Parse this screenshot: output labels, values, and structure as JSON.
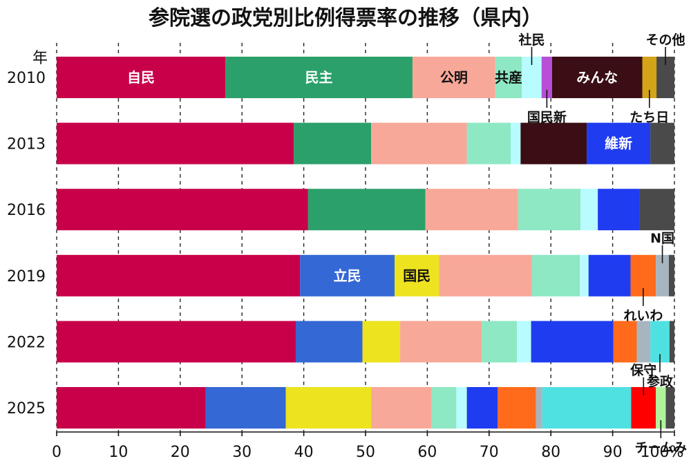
{
  "chart_data": {
    "type": "bar",
    "orientation": "horizontal",
    "stacked": true,
    "title": "参院選の政党別比例得票率の推移（県内）",
    "y_axis_header": "年",
    "x_unit_suffix": "%",
    "xlim": [
      0,
      100
    ],
    "x_ticks": [
      0,
      10,
      20,
      30,
      40,
      50,
      60,
      70,
      80,
      90,
      100
    ],
    "grid": "vertical dashed",
    "categories": [
      "2010",
      "2013",
      "2016",
      "2019",
      "2022",
      "2025"
    ],
    "parties": [
      {
        "name": "自民",
        "color": "#C8004A"
      },
      {
        "name": "民主",
        "color": "#2BA06A"
      },
      {
        "name": "立民",
        "color": "#3468D4"
      },
      {
        "name": "国民",
        "color": "#EDE31F"
      },
      {
        "name": "公明",
        "color": "#F8A898"
      },
      {
        "name": "共産",
        "color": "#8EE8C4"
      },
      {
        "name": "社民",
        "color": "#B8FCFF"
      },
      {
        "name": "国民新",
        "color": "#B84FD6"
      },
      {
        "name": "みんな",
        "color": "#3A0E14"
      },
      {
        "name": "維新",
        "color": "#1F3CF0"
      },
      {
        "name": "れいわ",
        "color": "#FF6B1A"
      },
      {
        "name": "N国",
        "color": "#A7B5C0"
      },
      {
        "name": "参政",
        "color": "#4FE1E1"
      },
      {
        "name": "保守",
        "color": "#FF0000"
      },
      {
        "name": "チームみ",
        "color": "#B0F39C"
      },
      {
        "name": "たち日",
        "color": "#D3A318"
      },
      {
        "name": "その他",
        "color": "#4A4A4A"
      }
    ],
    "rows": [
      {
        "year": "2010",
        "segments": [
          {
            "party": "自民",
            "value": 27.3,
            "label": "自民"
          },
          {
            "party": "民主",
            "value": 30.3,
            "label": "民主"
          },
          {
            "party": "公明",
            "value": 13.4,
            "label": "公明"
          },
          {
            "party": "共産",
            "value": 4.3,
            "label": "共産"
          },
          {
            "party": "社民",
            "value": 3.2
          },
          {
            "party": "国民新",
            "value": 1.7
          },
          {
            "party": "みんな",
            "value": 14.6,
            "label": "みんな"
          },
          {
            "party": "たち日",
            "value": 2.3
          },
          {
            "party": "その他",
            "value": 2.9
          }
        ]
      },
      {
        "year": "2013",
        "segments": [
          {
            "party": "自民",
            "value": 38.4
          },
          {
            "party": "民主",
            "value": 12.5
          },
          {
            "party": "公明",
            "value": 15.5
          },
          {
            "party": "共産",
            "value": 7.1
          },
          {
            "party": "社民",
            "value": 1.6
          },
          {
            "party": "みんな",
            "value": 10.7
          },
          {
            "party": "維新",
            "value": 10.3,
            "label": "維新"
          },
          {
            "party": "その他",
            "value": 3.9
          }
        ]
      },
      {
        "year": "2016",
        "segments": [
          {
            "party": "自民",
            "value": 40.7
          },
          {
            "party": "民主",
            "value": 19.0
          },
          {
            "party": "公明",
            "value": 15.0
          },
          {
            "party": "共産",
            "value": 10.1
          },
          {
            "party": "社民",
            "value": 2.8
          },
          {
            "party": "維新",
            "value": 6.7
          },
          {
            "party": "その他",
            "value": 5.7
          }
        ]
      },
      {
        "year": "2019",
        "segments": [
          {
            "party": "自民",
            "value": 39.4
          },
          {
            "party": "立民",
            "value": 15.3,
            "label": "立民"
          },
          {
            "party": "国民",
            "value": 7.2,
            "label": "国民"
          },
          {
            "party": "公明",
            "value": 15.0
          },
          {
            "party": "共産",
            "value": 7.8
          },
          {
            "party": "社民",
            "value": 1.4
          },
          {
            "party": "維新",
            "value": 6.8
          },
          {
            "party": "れいわ",
            "value": 4.1
          },
          {
            "party": "N国",
            "value": 2.1
          },
          {
            "party": "その他",
            "value": 0.9
          }
        ]
      },
      {
        "year": "2022",
        "segments": [
          {
            "party": "自民",
            "value": 38.7
          },
          {
            "party": "立民",
            "value": 10.8
          },
          {
            "party": "国民",
            "value": 6.1
          },
          {
            "party": "公明",
            "value": 13.2
          },
          {
            "party": "共産",
            "value": 5.7
          },
          {
            "party": "社民",
            "value": 2.3
          },
          {
            "party": "維新",
            "value": 13.3
          },
          {
            "party": "れいわ",
            "value": 3.8
          },
          {
            "party": "N国",
            "value": 2.2
          },
          {
            "party": "参政",
            "value": 3.1
          },
          {
            "party": "その他",
            "value": 0.8
          }
        ]
      },
      {
        "year": "2025",
        "segments": [
          {
            "party": "自民",
            "value": 24.1
          },
          {
            "party": "立民",
            "value": 13.0
          },
          {
            "party": "国民",
            "value": 13.8
          },
          {
            "party": "公明",
            "value": 9.8
          },
          {
            "party": "共産",
            "value": 4.0
          },
          {
            "party": "社民",
            "value": 1.7
          },
          {
            "party": "維新",
            "value": 5.0
          },
          {
            "party": "れいわ",
            "value": 6.2
          },
          {
            "party": "N国",
            "value": 1.0
          },
          {
            "party": "参政",
            "value": 14.4
          },
          {
            "party": "保守",
            "value": 4.0
          },
          {
            "party": "チームみ",
            "value": 1.6
          },
          {
            "party": "その他",
            "value": 1.4
          }
        ]
      }
    ],
    "callouts": [
      {
        "text": "社民",
        "year": "2010",
        "party": "社民",
        "side": "top"
      },
      {
        "text": "国民新",
        "year": "2010",
        "party": "国民新",
        "side": "bottom"
      },
      {
        "text": "その他",
        "year": "2010",
        "party": "その他",
        "side": "top"
      },
      {
        "text": "たち日",
        "year": "2010",
        "party": "たち日",
        "side": "bottom"
      },
      {
        "text": "N国",
        "year": "2019",
        "party": "N国",
        "side": "top"
      },
      {
        "text": "れいわ",
        "year": "2019",
        "party": "れいわ",
        "side": "bottom"
      },
      {
        "text": "参政",
        "year": "2022",
        "party": "参政",
        "side": "bottom"
      },
      {
        "text": "保守",
        "year": "2025",
        "party": "保守",
        "side": "top"
      },
      {
        "text": "チームみ",
        "year": "2025",
        "party": "チームみ",
        "side": "bottom"
      }
    ]
  }
}
